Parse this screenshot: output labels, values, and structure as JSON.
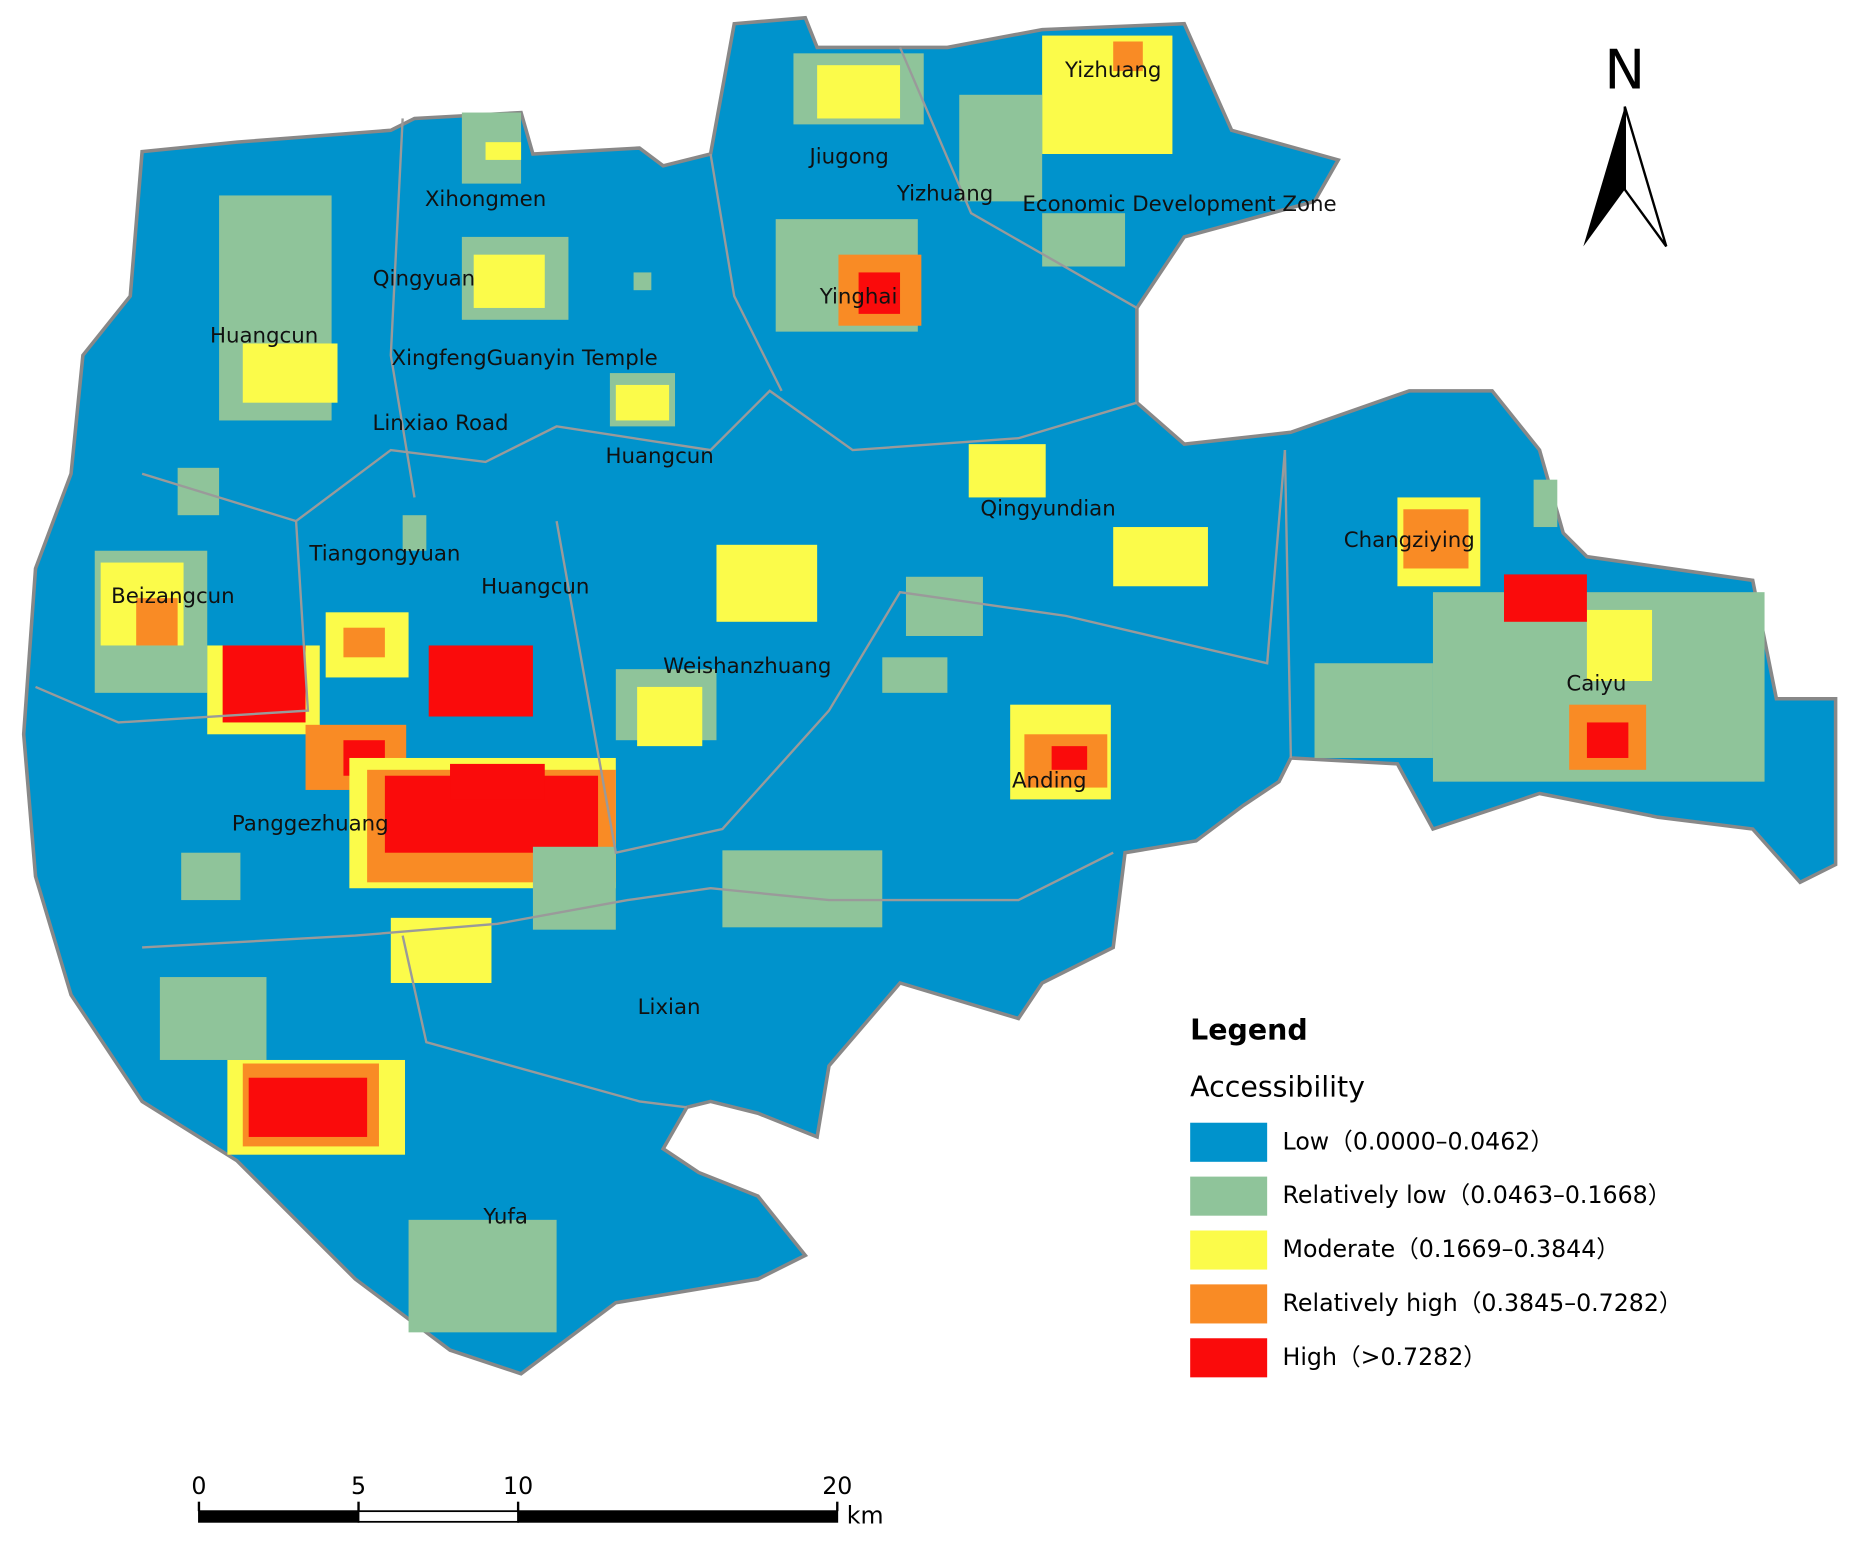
{
  "places": [
    "Yizhuang",
    "Jiugong",
    "Yizhuang",
    "Economic Development Zone",
    "Xihongmen",
    "Qingyuan",
    "Yinghai",
    "Huangcun",
    "XingfengGuanyin Temple",
    "Linxiao Road",
    "Huangcun",
    "Qingyundian",
    "Tiangongyuan",
    "Changziying",
    "Beizangcun",
    "Huangcun",
    "Weishanzhuang",
    "Caiyu",
    "Anding",
    "Panggezhuang",
    "Lixian",
    "Yufa"
  ],
  "legend": {
    "title": "Legend",
    "subtitle": "Accessibility",
    "items": [
      {
        "label": "Low（0.0000–0.0462）",
        "color": "#0093cc"
      },
      {
        "label": "Relatively low（0.0463–0.1668）",
        "color": "#8fc49a"
      },
      {
        "label": "Moderate（0.1669–0.3844）",
        "color": "#fbfb4a"
      },
      {
        "label": "Relatively high（0.3845–0.7282）",
        "color": "#f98b25"
      },
      {
        "label": "High（>0.7282）",
        "color": "#fa0b0b"
      }
    ]
  },
  "north": "N",
  "scale_bar": {
    "ticks": [
      0,
      5,
      10,
      20
    ],
    "unit": "km"
  }
}
